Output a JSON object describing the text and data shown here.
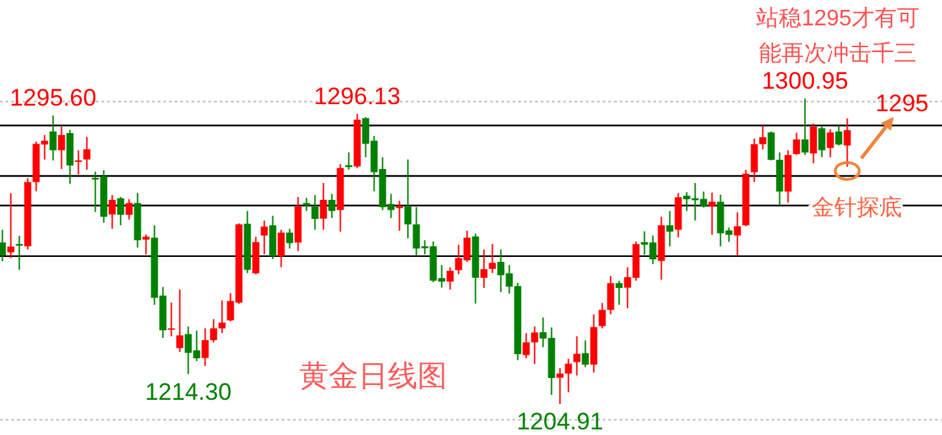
{
  "chart_data": {
    "type": "candlestick",
    "title": "黄金日线图",
    "categories": [
      null,
      null,
      null,
      null,
      null,
      null,
      null,
      null,
      null,
      null,
      null,
      null,
      null,
      null,
      null,
      null,
      null,
      null,
      null,
      null,
      null,
      null,
      null,
      null,
      null,
      null,
      null,
      null,
      null,
      null,
      null,
      null,
      null,
      null,
      null,
      null,
      null,
      null,
      null,
      null,
      null,
      null,
      null,
      null,
      null,
      null,
      null,
      null,
      null,
      null,
      null,
      null,
      null,
      null,
      null,
      null,
      null,
      null,
      null,
      null,
      null,
      null,
      null,
      null,
      null,
      null,
      null,
      null,
      null,
      null,
      null,
      null,
      null,
      null,
      null,
      null,
      null,
      null,
      null,
      null,
      null,
      null,
      null,
      null,
      null,
      null,
      null,
      null,
      null,
      null,
      null,
      null,
      null,
      null,
      null,
      null,
      null,
      null,
      null,
      null,
      null
    ],
    "ohlc": [
      [
        1255.7,
        1259.7,
        1249.8,
        1251.6
      ],
      [
        1252.6,
        1271.2,
        1250.8,
        1254.4
      ],
      [
        1255.2,
        1257.8,
        1247.1,
        1254.7
      ],
      [
        1254.5,
        1275.9,
        1253.5,
        1274.7
      ],
      [
        1274.7,
        1287.4,
        1271.8,
        1286.7
      ],
      [
        1286.5,
        1289.5,
        1281.8,
        1287.7
      ],
      [
        1290.6,
        1295.6,
        1281.5,
        1284.7
      ],
      [
        1284.7,
        1292.1,
        1278.8,
        1289.5
      ],
      [
        1290.1,
        1291.1,
        1274.1,
        1279.9
      ],
      [
        1281.2,
        1284.7,
        1277.1,
        1281.5
      ],
      [
        1281.8,
        1288.9,
        1278.6,
        1285.0
      ],
      [
        1276.0,
        1278.0,
        1265.3,
        1275.5
      ],
      [
        1276.5,
        1278.4,
        1261.9,
        1263.8
      ],
      [
        1264.5,
        1270.6,
        1260.0,
        1269.1
      ],
      [
        1269.6,
        1270.0,
        1261.1,
        1264.4
      ],
      [
        1264.4,
        1269.3,
        1262.9,
        1268.1
      ],
      [
        1268.1,
        1271.3,
        1254.1,
        1256.4
      ],
      [
        1256.6,
        1258.2,
        1252.0,
        1257.5
      ],
      [
        1257.2,
        1261.1,
        1236.1,
        1238.3
      ],
      [
        1239.0,
        1241.7,
        1225.7,
        1228.1
      ],
      [
        1228.3,
        1236.8,
        1226.2,
        1228.7
      ],
      [
        1222.5,
        1240.9,
        1221.3,
        1226.5
      ],
      [
        1226.9,
        1229.3,
        1214.3,
        1221.0
      ],
      [
        1221.8,
        1228.0,
        1218.4,
        1219.3
      ],
      [
        1219.4,
        1228.7,
        1216.9,
        1225.0
      ],
      [
        1225.0,
        1231.6,
        1224.3,
        1228.7
      ],
      [
        1228.7,
        1237.5,
        1227.2,
        1230.5
      ],
      [
        1231.2,
        1239.8,
        1230.9,
        1237.3
      ],
      [
        1236.8,
        1261.7,
        1236.4,
        1261.4
      ],
      [
        1261.6,
        1265.6,
        1246.1,
        1247.1
      ],
      [
        1246.0,
        1257.5,
        1245.7,
        1255.8
      ],
      [
        1257.9,
        1262.6,
        1252.0,
        1260.7
      ],
      [
        1261.1,
        1264.1,
        1250.5,
        1251.4
      ],
      [
        1251.4,
        1259.7,
        1247.9,
        1258.8
      ],
      [
        1258.8,
        1260.0,
        1253.8,
        1255.5
      ],
      [
        1255.7,
        1270.0,
        1253.0,
        1267.0
      ],
      [
        1268.1,
        1269.7,
        1265.6,
        1267.3
      ],
      [
        1267.0,
        1270.6,
        1259.7,
        1263.1
      ],
      [
        1263.2,
        1274.4,
        1259.7,
        1269.1
      ],
      [
        1269.1,
        1271.0,
        1263.4,
        1265.6
      ],
      [
        1265.9,
        1280.3,
        1259.1,
        1279.1
      ],
      [
        1280.0,
        1284.0,
        1278.6,
        1279.4
      ],
      [
        1279.6,
        1296.13,
        1279.1,
        1294.3
      ],
      [
        1294.8,
        1295.1,
        1282.5,
        1286.7
      ],
      [
        1287.7,
        1289.2,
        1271.8,
        1277.8
      ],
      [
        1278.8,
        1282.5,
        1265.9,
        1266.8
      ],
      [
        1267.8,
        1271.0,
        1263.4,
        1265.9
      ],
      [
        1266.5,
        1268.8,
        1259.4,
        1267.0
      ],
      [
        1267.0,
        1281.8,
        1257.0,
        1261.4
      ],
      [
        1261.4,
        1266.8,
        1251.4,
        1253.8
      ],
      [
        1254.5,
        1256.4,
        1252.0,
        1253.9
      ],
      [
        1254.5,
        1256.0,
        1243.2,
        1243.7
      ],
      [
        1244.5,
        1248.6,
        1241.5,
        1243.4
      ],
      [
        1243.4,
        1247.9,
        1240.9,
        1246.8
      ],
      [
        1247.0,
        1255.0,
        1245.7,
        1250.8
      ],
      [
        1250.1,
        1259.4,
        1249.6,
        1257.2
      ],
      [
        1257.6,
        1258.5,
        1236.5,
        1244.6
      ],
      [
        1244.6,
        1253.5,
        1241.4,
        1247.3
      ],
      [
        1247.4,
        1255.2,
        1246.1,
        1249.3
      ],
      [
        1249.6,
        1253.5,
        1240.1,
        1245.4
      ],
      [
        1246.0,
        1248.6,
        1239.6,
        1241.8
      ],
      [
        1242.0,
        1243.0,
        1218.7,
        1220.6
      ],
      [
        1220.3,
        1227.2,
        1219.3,
        1224.3
      ],
      [
        1224.3,
        1229.3,
        1217.5,
        1227.4
      ],
      [
        1227.5,
        1232.1,
        1222.8,
        1225.5
      ],
      [
        1225.7,
        1229.0,
        1207.8,
        1213.1
      ],
      [
        1213.2,
        1216.2,
        1204.91,
        1214.5
      ],
      [
        1214.5,
        1219.1,
        1208.6,
        1217.6
      ],
      [
        1218.1,
        1226.2,
        1213.9,
        1220.7
      ],
      [
        1220.9,
        1224.9,
        1216.5,
        1217.3
      ],
      [
        1217.3,
        1233.1,
        1214.8,
        1229.1
      ],
      [
        1229.4,
        1236.7,
        1228.7,
        1234.5
      ],
      [
        1234.5,
        1245.2,
        1233.1,
        1242.9
      ],
      [
        1242.9,
        1243.7,
        1236.1,
        1241.4
      ],
      [
        1241.5,
        1247.9,
        1235.0,
        1244.8
      ],
      [
        1244.6,
        1256.0,
        1243.7,
        1255.2
      ],
      [
        1255.8,
        1259.2,
        1251.9,
        1255.0
      ],
      [
        1255.7,
        1257.9,
        1248.9,
        1250.4
      ],
      [
        1249.9,
        1263.8,
        1244.0,
        1261.1
      ],
      [
        1261.1,
        1265.6,
        1254.5,
        1259.1
      ],
      [
        1259.7,
        1271.2,
        1257.3,
        1269.9
      ],
      [
        1270.4,
        1271.5,
        1265.6,
        1269.3
      ],
      [
        1269.6,
        1274.4,
        1262.6,
        1269.0
      ],
      [
        1269.4,
        1271.7,
        1266.7,
        1267.0
      ],
      [
        1267.0,
        1271.4,
        1258.1,
        1268.5
      ],
      [
        1268.5,
        1270.7,
        1254.5,
        1258.6
      ],
      [
        1259.5,
        1260.4,
        1255.9,
        1258.1
      ],
      [
        1257.9,
        1265.2,
        1251.5,
        1260.8
      ],
      [
        1261.1,
        1278.5,
        1260.8,
        1277.3
      ],
      [
        1277.8,
        1288.4,
        1274.7,
        1286.6
      ],
      [
        1286.6,
        1292.4,
        1285.0,
        1288.8
      ],
      [
        1290.3,
        1290.6,
        1281.5,
        1281.7
      ],
      [
        1281.7,
        1284.0,
        1267.4,
        1271.7
      ],
      [
        1271.7,
        1284.7,
        1268.2,
        1283.2
      ],
      [
        1283.5,
        1290.2,
        1283.2,
        1288.1
      ],
      [
        1288.1,
        1300.95,
        1283.2,
        1284.0
      ],
      [
        1283.7,
        1293.1,
        1280.6,
        1292.1
      ],
      [
        1291.6,
        1292.4,
        1282.5,
        1284.7
      ],
      [
        1285.4,
        1291.3,
        1282.5,
        1290.3
      ],
      [
        1290.6,
        1292.4,
        1286.2,
        1286.5
      ],
      [
        1286.2,
        1294.7,
        1279.5,
        1291.0
      ]
    ],
    "colors": [
      "#008000",
      "#ff0000",
      "#008000",
      "#ff0000",
      "#ff0000",
      "#ff0000",
      "#008000",
      "#ff0000",
      "#008000",
      "#ff0000",
      "#ff0000",
      "#008000",
      "#008000",
      "#ff0000",
      "#008000",
      "#ff0000",
      "#008000",
      "#ff0000",
      "#008000",
      "#008000",
      "#ff0000",
      "#ff0000",
      "#008000",
      "#008000",
      "#ff0000",
      "#ff0000",
      "#ff0000",
      "#ff0000",
      "#ff0000",
      "#008000",
      "#ff0000",
      "#ff0000",
      "#008000",
      "#ff0000",
      "#008000",
      "#ff0000",
      "#008000",
      "#008000",
      "#ff0000",
      "#008000",
      "#ff0000",
      "#008000",
      "#ff0000",
      "#008000",
      "#008000",
      "#008000",
      "#008000",
      "#ff0000",
      "#008000",
      "#008000",
      "#008000",
      "#008000",
      "#008000",
      "#ff0000",
      "#ff0000",
      "#ff0000",
      "#008000",
      "#ff0000",
      "#ff0000",
      "#008000",
      "#008000",
      "#008000",
      "#ff0000",
      "#ff0000",
      "#008000",
      "#008000",
      "#ff0000",
      "#ff0000",
      "#ff0000",
      "#008000",
      "#ff0000",
      "#ff0000",
      "#ff0000",
      "#008000",
      "#ff0000",
      "#ff0000",
      "#008000",
      "#008000",
      "#ff0000",
      "#008000",
      "#ff0000",
      "#008000",
      "#008000",
      "#008000",
      "#ff0000",
      "#008000",
      "#008000",
      "#ff0000",
      "#ff0000",
      "#ff0000",
      "#ff0000",
      "#008000",
      "#008000",
      "#ff0000",
      "#ff0000",
      "#008000",
      "#ff0000",
      "#008000",
      "#ff0000",
      "#008000",
      "#ff0000"
    ],
    "ref_lines": [
      {
        "axis": "y",
        "value": 1300,
        "color": "#c8c8c8",
        "line_style": "dotted"
      },
      {
        "axis": "y",
        "value": 1292.5,
        "color": "#000000",
        "line_style": "solid"
      },
      {
        "axis": "y",
        "value": 1276.6,
        "color": "#000000",
        "line_style": "solid"
      },
      {
        "axis": "y",
        "value": 1267.3,
        "color": "#000000",
        "line_style": "solid"
      },
      {
        "axis": "y",
        "value": 1251.4,
        "color": "#000000",
        "line_style": "solid"
      },
      {
        "axis": "y",
        "value": 1200,
        "color": "#c8c8c8",
        "line_style": "dotted"
      }
    ],
    "annotations": [
      {
        "text": "1295.60",
        "y": 1295.6
      },
      {
        "text": "1296.13",
        "y": 1296.13
      },
      {
        "text": "1300.95",
        "y": 1300.95
      },
      {
        "text": "1214.30",
        "y": 1214.3
      },
      {
        "text": "1204.91",
        "y": 1204.91
      },
      "1295",
      "站稳1295才有可能再次冲击千三",
      "金针探底"
    ]
  }
}
